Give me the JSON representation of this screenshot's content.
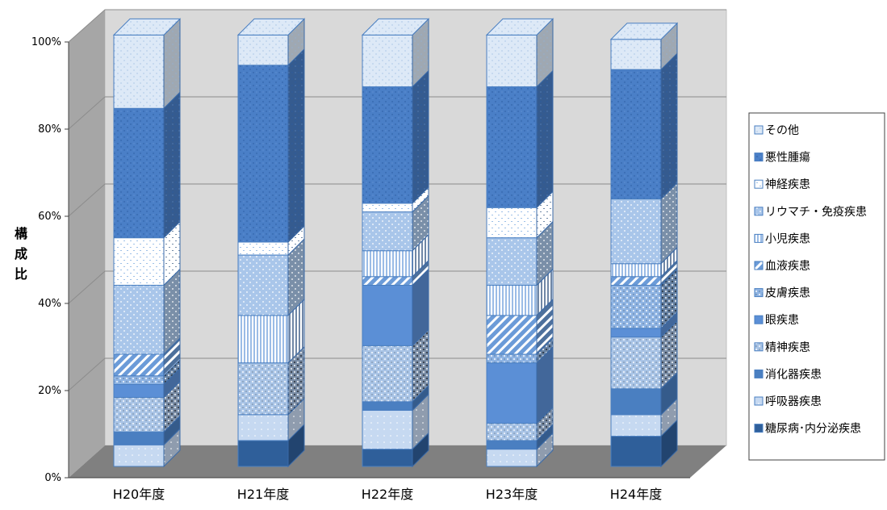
{
  "chart_data": {
    "type": "bar",
    "stacked": true,
    "percent": true,
    "three_d": true,
    "categories": [
      "H20年度",
      "H21年度",
      "H22年度",
      "H23年度",
      "H24年度"
    ],
    "ylabel": "構成比",
    "ylim": [
      0,
      100
    ],
    "yticks": [
      "0%",
      "20%",
      "40%",
      "60%",
      "80%",
      "100%"
    ],
    "ytick_values": [
      0,
      20,
      40,
      60,
      80,
      100
    ],
    "grid": true,
    "legend_position": "right",
    "series": [
      {
        "name": "糖尿病･内分泌疾患",
        "values": [
          0,
          6,
          4,
          0,
          7
        ],
        "color": "#2f5f9a",
        "pattern": "solid"
      },
      {
        "name": "呼吸器疾患",
        "values": [
          5,
          6,
          9,
          4,
          5
        ],
        "color": "#c6d9f1",
        "pattern": "dots-sparse"
      },
      {
        "name": "消化器疾患",
        "values": [
          3,
          0,
          2,
          2,
          6
        ],
        "color": "#4a7fc1",
        "pattern": "solid"
      },
      {
        "name": "精神疾患",
        "values": [
          8,
          12,
          13,
          4,
          12
        ],
        "color": "#a9c4e6",
        "pattern": "checker"
      },
      {
        "name": "眼疾患",
        "values": [
          3,
          0,
          14,
          14,
          2
        ],
        "color": "#5b8fd6",
        "pattern": "solid"
      },
      {
        "name": "皮膚疾患",
        "values": [
          2,
          0,
          0,
          2,
          10
        ],
        "color": "#8fb4e3",
        "pattern": "checker"
      },
      {
        "name": "血液疾患",
        "values": [
          5,
          0,
          2,
          9,
          2
        ],
        "color": "#6b9bd8",
        "pattern": "diag"
      },
      {
        "name": "小児疾患",
        "values": [
          0,
          11,
          6,
          7,
          3
        ],
        "color": "#9bbce6",
        "pattern": "vertical"
      },
      {
        "name": "リウマチ・免疫疾患",
        "values": [
          16,
          14,
          9,
          11,
          15
        ],
        "color": "#a9c6ea",
        "pattern": "dots"
      },
      {
        "name": "神経疾患",
        "values": [
          11,
          3,
          2,
          7,
          0
        ],
        "color": "#9dc0e8",
        "pattern": "dashes"
      },
      {
        "name": "悪性腫瘍",
        "values": [
          30,
          41,
          27,
          28,
          30
        ],
        "color": "#4a7fc7",
        "pattern": "dense"
      },
      {
        "name": "その他",
        "values": [
          17,
          7,
          12,
          12,
          7
        ],
        "color": "#dde9f7",
        "pattern": "dots-fine"
      }
    ]
  }
}
